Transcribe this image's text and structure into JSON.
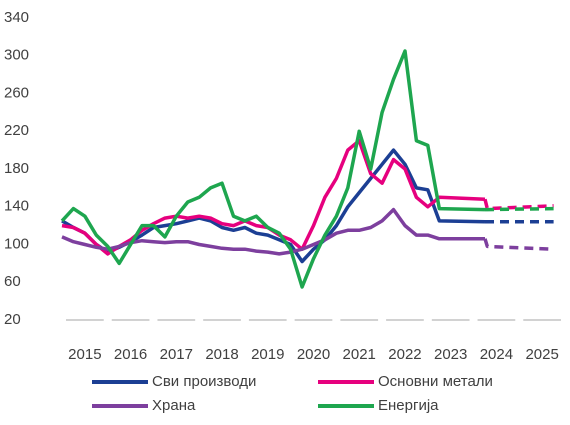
{
  "chart_data": {
    "type": "line",
    "x": [
      2015,
      2015.25,
      2015.5,
      2015.75,
      2016,
      2016.25,
      2016.5,
      2016.75,
      2017,
      2017.25,
      2017.5,
      2017.75,
      2018,
      2018.25,
      2018.5,
      2018.75,
      2019,
      2019.25,
      2019.5,
      2019.75,
      2020,
      2020.25,
      2020.5,
      2020.75,
      2021,
      2021.25,
      2021.5,
      2021.75,
      2022,
      2022.25,
      2022.5,
      2022.75,
      2023,
      2023.25,
      2024.25,
      2024.3,
      2025.75
    ],
    "series": [
      {
        "name": "Сви производи",
        "color": "#1c3f94",
        "values": [
          125,
          118,
          112,
          100,
          92,
          97,
          103,
          110,
          118,
          120,
          122,
          125,
          128,
          125,
          118,
          115,
          118,
          112,
          110,
          105,
          100,
          82,
          95,
          105,
          120,
          140,
          155,
          170,
          185,
          200,
          185,
          160,
          158,
          125,
          124,
          124,
          124
        ]
      },
      {
        "name": "Основни метали",
        "color": "#e6007e",
        "values": [
          120,
          118,
          112,
          100,
          90,
          98,
          105,
          115,
          122,
          128,
          130,
          128,
          130,
          128,
          122,
          120,
          125,
          120,
          118,
          110,
          105,
          95,
          120,
          150,
          170,
          200,
          210,
          175,
          165,
          190,
          180,
          150,
          140,
          150,
          148,
          138,
          141
        ]
      },
      {
        "name": "Храна",
        "color": "#7d3f9e",
        "values": [
          108,
          103,
          100,
          97,
          95,
          98,
          102,
          104,
          103,
          102,
          103,
          103,
          100,
          98,
          96,
          95,
          95,
          93,
          92,
          90,
          92,
          95,
          100,
          105,
          112,
          115,
          115,
          118,
          125,
          137,
          120,
          110,
          110,
          106,
          106,
          98,
          95
        ]
      },
      {
        "name": "Енергија",
        "color": "#1ea64f",
        "values": [
          125,
          138,
          130,
          110,
          98,
          80,
          100,
          120,
          120,
          108,
          130,
          145,
          150,
          160,
          165,
          130,
          125,
          130,
          118,
          112,
          95,
          55,
          85,
          110,
          130,
          160,
          220,
          180,
          240,
          275,
          305,
          210,
          205,
          138,
          137,
          137,
          138
        ]
      }
    ],
    "forecast_from": 2024.25,
    "xlim": [
      2015,
      2026
    ],
    "xticks": [
      2015,
      2016,
      2017,
      2018,
      2019,
      2020,
      2021,
      2022,
      2023,
      2024,
      2025
    ],
    "ylim": [
      20,
      340
    ],
    "yticks": [
      20,
      60,
      100,
      140,
      180,
      220,
      260,
      300,
      340
    ],
    "grid": false
  }
}
